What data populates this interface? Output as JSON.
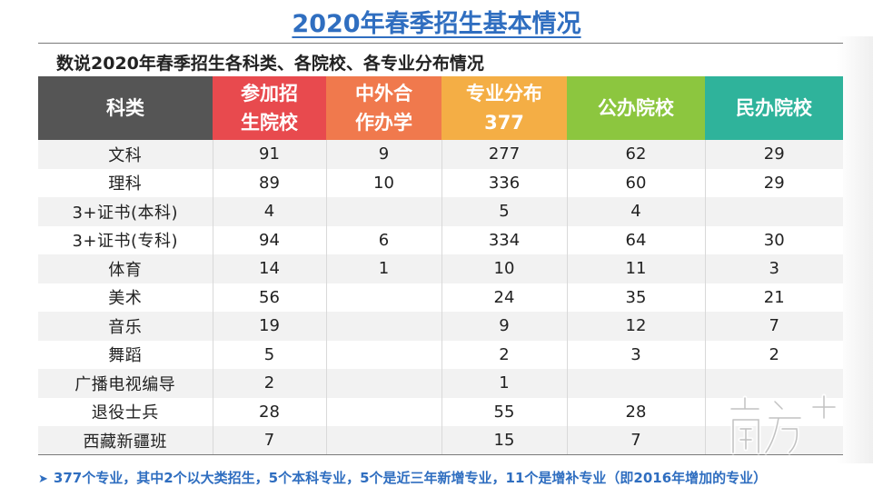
{
  "title": "2020年春季招生基本情况",
  "subtitle": "数说2020年春季招生各科类、各院校、各专业分布情况",
  "colors": {
    "header": [
      "#555555",
      "#e84a4e",
      "#f0794d",
      "#f4ae45",
      "#8cc63f",
      "#2fb39b"
    ],
    "title": "#2f6ec0"
  },
  "table": {
    "headers": [
      [
        "科类"
      ],
      [
        "参加招",
        "生院校"
      ],
      [
        "中外合",
        "作办学"
      ],
      [
        "专业分布",
        "377"
      ],
      [
        "公办院校"
      ],
      [
        "民办院校"
      ]
    ],
    "rows": [
      [
        "文科",
        "91",
        "9",
        "277",
        "62",
        "29"
      ],
      [
        "理科",
        "89",
        "10",
        "336",
        "60",
        "29"
      ],
      [
        "3+证书(本科)",
        "4",
        "",
        "5",
        "4",
        ""
      ],
      [
        "3+证书(专科)",
        "94",
        "6",
        "334",
        "64",
        "30"
      ],
      [
        "体育",
        "14",
        "1",
        "10",
        "11",
        "3"
      ],
      [
        "美术",
        "56",
        "",
        "24",
        "35",
        "21"
      ],
      [
        "音乐",
        "19",
        "",
        "9",
        "12",
        "7"
      ],
      [
        "舞蹈",
        "5",
        "",
        "2",
        "3",
        "2"
      ],
      [
        "广播电视编导",
        "2",
        "",
        "1",
        "",
        ""
      ],
      [
        "退役士兵",
        "28",
        "",
        "55",
        "28",
        ""
      ],
      [
        "西藏新疆班",
        "7",
        "",
        "15",
        "7",
        ""
      ]
    ]
  },
  "footnote": {
    "arrow_icon": "chevron-right-icon",
    "text": "377个专业，其中2个以大类招生，5个本科专业，5个是近三年新增专业，11个是增补专业（即2016年增加的专业）"
  },
  "logo": {
    "icon": "nanfang-plus-logo",
    "text": "南方+"
  }
}
